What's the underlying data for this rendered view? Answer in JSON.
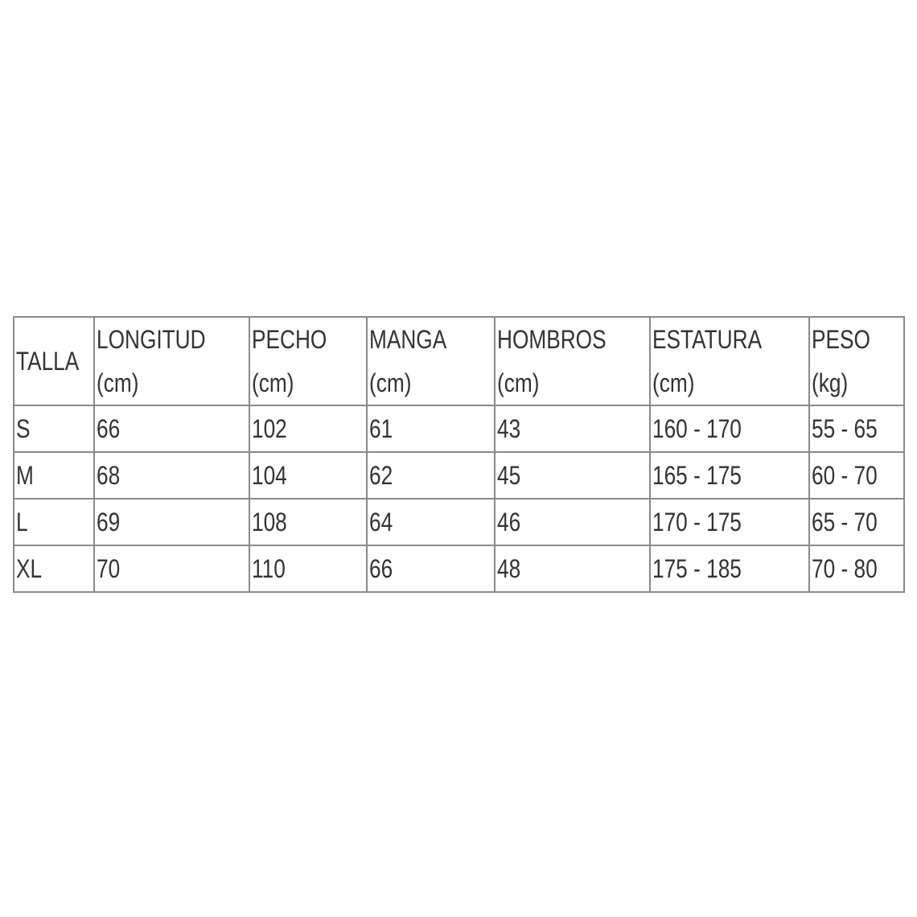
{
  "table": {
    "headers": [
      {
        "label": "TALLA",
        "unit": ""
      },
      {
        "label": "LONGITUD",
        "unit": "(cm)"
      },
      {
        "label": "PECHO",
        "unit": "(cm)"
      },
      {
        "label": "MANGA",
        "unit": "(cm)"
      },
      {
        "label": "HOMBROS",
        "unit": "(cm)"
      },
      {
        "label": "ESTATURA",
        "unit": "(cm)"
      },
      {
        "label": "PESO",
        "unit": "(kg)"
      }
    ],
    "rows": [
      [
        "S",
        "66",
        "102",
        "61",
        "43",
        "160 - 170",
        "55 - 65"
      ],
      [
        "M",
        "68",
        "104",
        "62",
        "45",
        "165 - 175",
        "60 - 70"
      ],
      [
        "L",
        "69",
        "108",
        "64",
        "46",
        "170 - 175",
        "65 - 70"
      ],
      [
        "XL",
        "70",
        "110",
        "66",
        "48",
        "175 - 185",
        "70 - 80"
      ]
    ]
  }
}
